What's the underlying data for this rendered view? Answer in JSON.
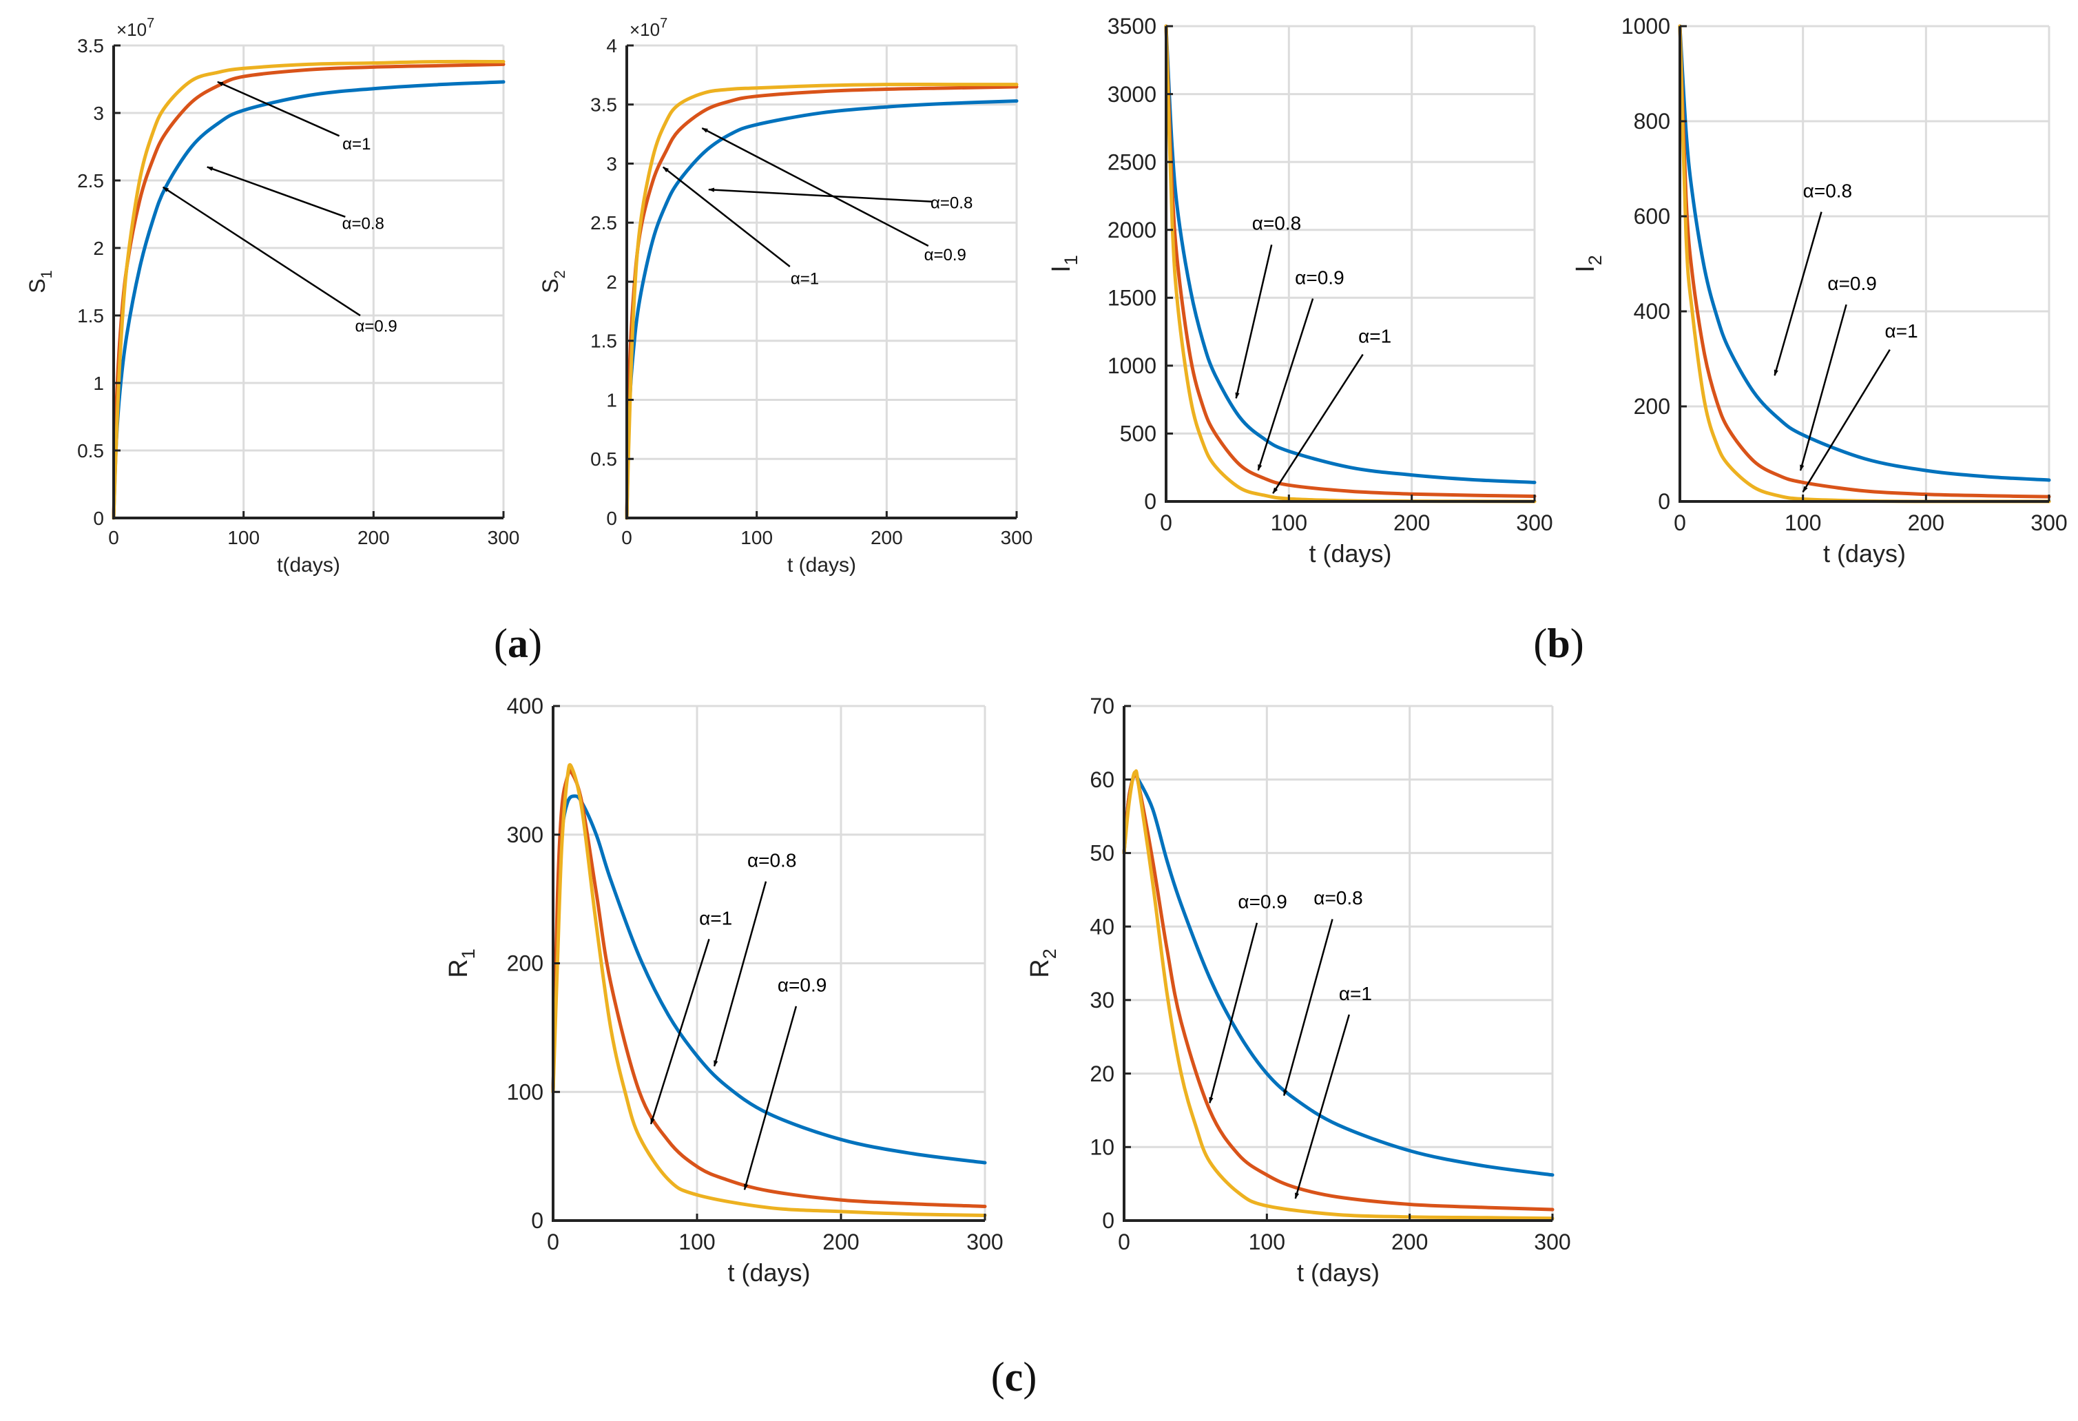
{
  "panel_labels": {
    "a": "a",
    "b": "b",
    "c": "c"
  },
  "colors": {
    "alpha_0_8": "#0072BD",
    "alpha_0_9": "#D95319",
    "alpha_1": "#EDB120",
    "grid": "#dcdcdc",
    "axis": "#222222",
    "arrow": "#000000"
  },
  "chart_data": [
    {
      "id": "S1",
      "type": "line",
      "xlabel": "t(days)",
      "ylabel_main": "S",
      "ylabel_sub": "1",
      "exponent_text": "×10",
      "exponent_sup": "7",
      "xlim": [
        0,
        300
      ],
      "ylim": [
        0,
        3.5
      ],
      "xticks": [
        0,
        100,
        200,
        300
      ],
      "xtick_labels": [
        "0",
        "100",
        "200",
        "300"
      ],
      "yticks": [
        0,
        0.5,
        1,
        1.5,
        2,
        2.5,
        3,
        3.5
      ],
      "ytick_labels": [
        "0",
        "0.5",
        "1",
        "1.5",
        "2",
        "2.5",
        "3",
        "3.5"
      ],
      "grid": true,
      "series": [
        {
          "name": "α=0.8",
          "x": [
            0,
            2,
            5,
            10,
            20,
            30,
            40,
            60,
            80,
            100,
            150,
            200,
            250,
            300
          ],
          "values": [
            0,
            0.55,
            0.95,
            1.35,
            1.85,
            2.2,
            2.45,
            2.75,
            2.92,
            3.02,
            3.13,
            3.18,
            3.21,
            3.23
          ]
        },
        {
          "name": "α=0.9",
          "x": [
            0,
            2,
            5,
            10,
            20,
            30,
            40,
            60,
            80,
            100,
            150,
            200,
            250,
            300
          ],
          "values": [
            0,
            0.8,
            1.35,
            1.85,
            2.35,
            2.65,
            2.85,
            3.08,
            3.2,
            3.27,
            3.32,
            3.34,
            3.35,
            3.36
          ]
        },
        {
          "name": "α=1",
          "x": [
            0,
            2,
            5,
            10,
            20,
            30,
            40,
            60,
            80,
            100,
            150,
            200,
            250,
            300
          ],
          "values": [
            0,
            0.55,
            1.2,
            1.85,
            2.5,
            2.85,
            3.05,
            3.24,
            3.3,
            3.33,
            3.36,
            3.37,
            3.38,
            3.38
          ]
        }
      ],
      "annotations": [
        {
          "text": "α=1",
          "label_x": 187,
          "label_y": 2.73,
          "arrow_x": 80,
          "arrow_y": 3.23
        },
        {
          "text": "α=0.8",
          "label_x": 192,
          "label_y": 2.14,
          "arrow_x": 72,
          "arrow_y": 2.6
        },
        {
          "text": "α=0.9",
          "label_x": 202,
          "label_y": 1.38,
          "arrow_x": 38,
          "arrow_y": 2.45
        }
      ]
    },
    {
      "id": "S2",
      "type": "line",
      "xlabel": "t (days)",
      "ylabel_main": "S",
      "ylabel_sub": "2",
      "exponent_text": "×10",
      "exponent_sup": "7",
      "xlim": [
        0,
        300
      ],
      "ylim": [
        0,
        4
      ],
      "xticks": [
        0,
        100,
        200,
        300
      ],
      "xtick_labels": [
        "0",
        "100",
        "200",
        "300"
      ],
      "yticks": [
        0,
        0.5,
        1,
        1.5,
        2,
        2.5,
        3,
        3.5,
        4
      ],
      "ytick_labels": [
        "0",
        "0.5",
        "1",
        "1.5",
        "2",
        "2.5",
        "3",
        "3.5",
        "4"
      ],
      "grid": true,
      "series": [
        {
          "name": "α=0.8",
          "x": [
            0,
            2,
            5,
            10,
            20,
            30,
            40,
            60,
            80,
            100,
            150,
            200,
            250,
            300
          ],
          "values": [
            0,
            0.9,
            1.4,
            1.85,
            2.35,
            2.65,
            2.85,
            3.1,
            3.25,
            3.33,
            3.43,
            3.48,
            3.51,
            3.53
          ]
        },
        {
          "name": "α=0.9",
          "x": [
            0,
            2,
            5,
            10,
            20,
            30,
            40,
            60,
            80,
            100,
            150,
            200,
            250,
            300
          ],
          "values": [
            0,
            1.2,
            1.85,
            2.4,
            2.85,
            3.1,
            3.28,
            3.45,
            3.53,
            3.57,
            3.61,
            3.63,
            3.64,
            3.65
          ]
        },
        {
          "name": "α=1",
          "x": [
            0,
            2,
            5,
            10,
            20,
            30,
            40,
            60,
            80,
            100,
            150,
            200,
            250,
            300
          ],
          "values": [
            0,
            0.8,
            1.7,
            2.45,
            3.05,
            3.35,
            3.5,
            3.6,
            3.63,
            3.64,
            3.66,
            3.67,
            3.67,
            3.67
          ]
        }
      ],
      "annotations": [
        {
          "text": "α=0.8",
          "label_x": 250,
          "label_y": 2.62,
          "arrow_x": 63,
          "arrow_y": 2.78
        },
        {
          "text": "α=0.9",
          "label_x": 245,
          "label_y": 2.18,
          "arrow_x": 58,
          "arrow_y": 3.3
        },
        {
          "text": "α=1",
          "label_x": 137,
          "label_y": 1.98,
          "arrow_x": 28,
          "arrow_y": 2.97
        }
      ]
    },
    {
      "id": "I1",
      "type": "line",
      "xlabel": "t (days)",
      "ylabel_main": "I",
      "ylabel_sub": "1",
      "xlim": [
        0,
        300
      ],
      "ylim": [
        0,
        3500
      ],
      "xticks": [
        0,
        100,
        200,
        300
      ],
      "xtick_labels": [
        "0",
        "100",
        "200",
        "300"
      ],
      "yticks": [
        0,
        500,
        1000,
        1500,
        2000,
        2500,
        3000,
        3500
      ],
      "ytick_labels": [
        "0",
        "500",
        "1000",
        "1500",
        "2000",
        "2500",
        "3000",
        "3500"
      ],
      "grid": true,
      "series": [
        {
          "name": "α=0.8",
          "x": [
            0,
            5,
            10,
            20,
            30,
            40,
            60,
            80,
            100,
            150,
            200,
            250,
            300
          ],
          "values": [
            3500,
            2600,
            2100,
            1550,
            1180,
            930,
            620,
            460,
            370,
            250,
            195,
            160,
            140
          ]
        },
        {
          "name": "α=0.9",
          "x": [
            0,
            5,
            10,
            20,
            30,
            40,
            60,
            80,
            100,
            150,
            200,
            250,
            300
          ],
          "values": [
            3500,
            2300,
            1700,
            1050,
            700,
            500,
            270,
            170,
            120,
            75,
            55,
            45,
            38
          ]
        },
        {
          "name": "α=1",
          "x": [
            0,
            5,
            10,
            20,
            30,
            40,
            60,
            80,
            100,
            150,
            200,
            250,
            300
          ],
          "values": [
            3500,
            2050,
            1400,
            750,
            430,
            260,
            100,
            45,
            20,
            5,
            2,
            1,
            0
          ]
        }
      ],
      "annotations": [
        {
          "text": "α=0.8",
          "label_x": 90,
          "label_y": 2000,
          "arrow_x": 57,
          "arrow_y": 760
        },
        {
          "text": "α=0.9",
          "label_x": 125,
          "label_y": 1600,
          "arrow_x": 75,
          "arrow_y": 230
        },
        {
          "text": "α=1",
          "label_x": 170,
          "label_y": 1170,
          "arrow_x": 87,
          "arrow_y": 60
        }
      ]
    },
    {
      "id": "I2",
      "type": "line",
      "xlabel": "t (days)",
      "ylabel_main": "I",
      "ylabel_sub": "2",
      "xlim": [
        0,
        300
      ],
      "ylim": [
        0,
        1000
      ],
      "xticks": [
        0,
        100,
        200,
        300
      ],
      "xtick_labels": [
        "0",
        "100",
        "200",
        "300"
      ],
      "yticks": [
        0,
        200,
        400,
        600,
        800,
        1000
      ],
      "ytick_labels": [
        "0",
        "200",
        "400",
        "600",
        "800",
        "1000"
      ],
      "grid": true,
      "series": [
        {
          "name": "α=0.8",
          "x": [
            0,
            5,
            10,
            20,
            30,
            40,
            60,
            80,
            100,
            150,
            200,
            250,
            300
          ],
          "values": [
            1000,
            780,
            650,
            490,
            390,
            320,
            230,
            175,
            140,
            90,
            65,
            52,
            45
          ]
        },
        {
          "name": "α=0.9",
          "x": [
            0,
            5,
            10,
            20,
            30,
            40,
            60,
            80,
            100,
            150,
            200,
            250,
            300
          ],
          "values": [
            1000,
            640,
            480,
            310,
            210,
            150,
            85,
            55,
            40,
            22,
            15,
            12,
            10
          ]
        },
        {
          "name": "α=1",
          "x": [
            0,
            5,
            10,
            20,
            30,
            40,
            60,
            80,
            100,
            150,
            200,
            250,
            300
          ],
          "values": [
            1000,
            560,
            400,
            210,
            120,
            75,
            30,
            12,
            5,
            1,
            0,
            0,
            0
          ]
        }
      ],
      "annotations": [
        {
          "text": "α=0.8",
          "label_x": 120,
          "label_y": 640,
          "arrow_x": 77,
          "arrow_y": 265
        },
        {
          "text": "α=0.9",
          "label_x": 140,
          "label_y": 445,
          "arrow_x": 98,
          "arrow_y": 65
        },
        {
          "text": "α=1",
          "label_x": 180,
          "label_y": 345,
          "arrow_x": 100,
          "arrow_y": 20
        }
      ]
    },
    {
      "id": "R1",
      "type": "line",
      "xlabel": "t (days)",
      "ylabel_main": "R",
      "ylabel_sub": "1",
      "xlim": [
        0,
        300
      ],
      "ylim": [
        0,
        400
      ],
      "xticks": [
        0,
        100,
        200,
        300
      ],
      "xtick_labels": [
        "0",
        "100",
        "200",
        "300"
      ],
      "yticks": [
        0,
        100,
        200,
        300,
        400
      ],
      "ytick_labels": [
        "0",
        "100",
        "200",
        "300",
        "400"
      ],
      "grid": true,
      "series": [
        {
          "name": "α=0.8",
          "x": [
            0,
            3,
            6,
            10,
            15,
            20,
            30,
            40,
            60,
            80,
            100,
            120,
            150,
            200,
            250,
            300
          ],
          "values": [
            100,
            240,
            300,
            325,
            330,
            325,
            300,
            265,
            205,
            160,
            128,
            105,
            83,
            63,
            52,
            45
          ]
        },
        {
          "name": "α=0.9",
          "x": [
            0,
            3,
            6,
            10,
            13,
            20,
            30,
            40,
            60,
            80,
            100,
            120,
            150,
            200,
            250,
            300
          ],
          "values": [
            100,
            250,
            320,
            345,
            348,
            325,
            255,
            185,
            100,
            62,
            42,
            32,
            23,
            16,
            13,
            11
          ]
        },
        {
          "name": "α=1",
          "x": [
            0,
            3,
            6,
            10,
            13,
            20,
            30,
            40,
            50,
            60,
            80,
            100,
            150,
            200,
            250,
            300
          ],
          "values": [
            100,
            200,
            290,
            345,
            352,
            320,
            230,
            150,
            100,
            65,
            32,
            20,
            10,
            7,
            5,
            4
          ]
        }
      ],
      "annotations": [
        {
          "text": "α=0.8",
          "label_x": 152,
          "label_y": 275,
          "arrow_x": 112,
          "arrow_y": 120
        },
        {
          "text": "α=1",
          "label_x": 113,
          "label_y": 230,
          "arrow_x": 68,
          "arrow_y": 75
        },
        {
          "text": "α=0.9",
          "label_x": 173,
          "label_y": 178,
          "arrow_x": 133,
          "arrow_y": 24
        }
      ]
    },
    {
      "id": "R2",
      "type": "line",
      "xlabel": "t (days)",
      "ylabel_main": "R",
      "ylabel_sub": "2",
      "xlim": [
        0,
        300
      ],
      "ylim": [
        0,
        70
      ],
      "xticks": [
        0,
        100,
        200,
        300
      ],
      "xtick_labels": [
        "0",
        "100",
        "200",
        "300"
      ],
      "yticks": [
        0,
        10,
        20,
        30,
        40,
        50,
        60,
        70
      ],
      "ytick_labels": [
        "0",
        "10",
        "20",
        "30",
        "40",
        "50",
        "60",
        "70"
      ],
      "grid": true,
      "series": [
        {
          "name": "α=0.8",
          "x": [
            0,
            3,
            6,
            8,
            10,
            20,
            30,
            40,
            60,
            80,
            100,
            120,
            150,
            200,
            250,
            300
          ],
          "values": [
            50,
            57,
            60,
            60.5,
            60,
            56,
            49,
            43,
            33,
            25.5,
            20,
            16.5,
            13,
            9.5,
            7.5,
            6.2
          ]
        },
        {
          "name": "α=0.9",
          "x": [
            0,
            3,
            6,
            8,
            10,
            20,
            30,
            40,
            60,
            80,
            100,
            120,
            150,
            200,
            250,
            300
          ],
          "values": [
            50,
            57,
            60,
            60.5,
            59.5,
            49,
            37,
            27,
            15,
            9,
            6.2,
            4.5,
            3.2,
            2.2,
            1.8,
            1.5
          ]
        },
        {
          "name": "α=1",
          "x": [
            0,
            3,
            6,
            8,
            10,
            20,
            30,
            40,
            50,
            60,
            80,
            100,
            150,
            200,
            250,
            300
          ],
          "values": [
            50,
            56,
            60,
            61,
            59.5,
            46,
            31,
            20,
            13,
            8,
            3.8,
            2,
            0.8,
            0.5,
            0.4,
            0.3
          ]
        }
      ],
      "annotations": [
        {
          "text": "α=0.9",
          "label_x": 97,
          "label_y": 42.5,
          "arrow_x": 60,
          "arrow_y": 16
        },
        {
          "text": "α=0.8",
          "label_x": 150,
          "label_y": 43,
          "arrow_x": 112,
          "arrow_y": 17
        },
        {
          "text": "α=1",
          "label_x": 162,
          "label_y": 30,
          "arrow_x": 120,
          "arrow_y": 3
        }
      ]
    }
  ]
}
